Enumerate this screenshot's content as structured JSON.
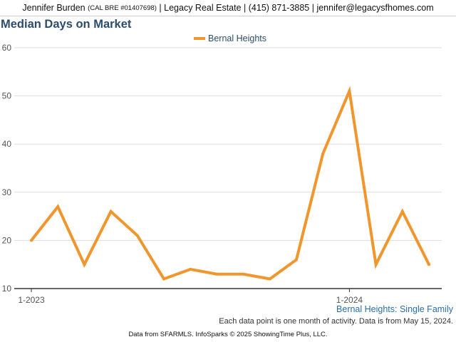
{
  "header": {
    "agent_name": "Jennifer Burden",
    "license": "(CAL BRE #01407698)",
    "brokerage": "Legacy Real Estate",
    "phone": "(415) 871-3885",
    "email": "jennifer@legacysfhomes.com"
  },
  "footer": {
    "chart_subtitle": "Bernal Heights: Single Family",
    "note": "Each data point is one month of activity. Data is from May 15, 2024.",
    "credit": "Data from SFARMLS. InfoSparks © 2025 ShowingTime Plus, LLC."
  },
  "colors": {
    "series": "#f0962d",
    "title": "#2b4d6b",
    "grid": "#dddddd",
    "axis": "#333333"
  },
  "chart_data": {
    "type": "line",
    "title": "Median Days on Market",
    "xlabel": "",
    "ylabel": "",
    "ylim": [
      10,
      60
    ],
    "yticks": [
      10,
      20,
      30,
      40,
      50,
      60
    ],
    "grid": true,
    "legend_position": "top-center",
    "x": [
      "2023-01",
      "2023-02",
      "2023-03",
      "2023-04",
      "2023-05",
      "2023-06",
      "2023-07",
      "2023-08",
      "2023-09",
      "2023-10",
      "2023-11",
      "2023-12",
      "2024-01",
      "2024-02",
      "2024-03",
      "2024-04"
    ],
    "xtick_labels": [
      {
        "x": "2023-01",
        "label": "1-2023"
      },
      {
        "x": "2024-01",
        "label": "1-2024"
      }
    ],
    "series": [
      {
        "name": "Bernal Heights",
        "values": [
          20,
          27,
          15,
          26,
          21,
          12,
          14,
          13,
          13,
          12,
          16,
          38,
          51,
          15,
          26,
          15
        ]
      }
    ]
  }
}
